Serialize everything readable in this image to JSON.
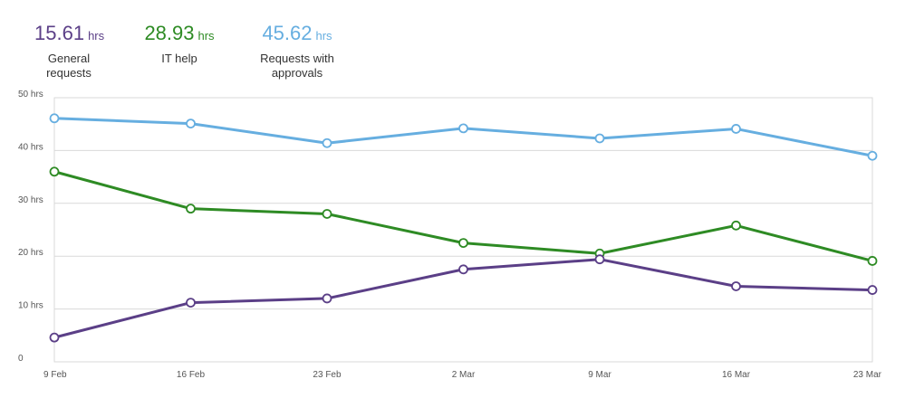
{
  "summary": [
    {
      "value": "15.61",
      "unit": "hrs",
      "label_lines": [
        "General",
        "requests"
      ],
      "color": "#5b3f87"
    },
    {
      "value": "28.93",
      "unit": "hrs",
      "label_lines": [
        "IT help"
      ],
      "color": "#2e8b24"
    },
    {
      "value": "45.62",
      "unit": "hrs",
      "label_lines": [
        "Requests with",
        "approvals"
      ],
      "color": "#66aee0"
    }
  ],
  "chart_data": {
    "type": "line",
    "x": [
      "9 Feb",
      "16 Feb",
      "23 Feb",
      "2 Mar",
      "9 Mar",
      "16 Mar",
      "23 Mar"
    ],
    "yticks": [
      "0",
      "10 hrs",
      "20 hrs",
      "30 hrs",
      "40 hrs",
      "50 hrs"
    ],
    "ylim": [
      0,
      50
    ],
    "grid": true,
    "series": [
      {
        "name": "Requests with approvals",
        "color": "#66aee0",
        "values": [
          46.1,
          45.1,
          41.4,
          44.2,
          42.3,
          44.1,
          39.0
        ]
      },
      {
        "name": "IT help",
        "color": "#2e8b24",
        "values": [
          36.0,
          29.0,
          28.0,
          22.5,
          20.5,
          25.8,
          19.1
        ]
      },
      {
        "name": "General requests",
        "color": "#5b3f87",
        "values": [
          4.6,
          11.2,
          12.0,
          17.5,
          19.4,
          14.3,
          13.6
        ]
      }
    ]
  }
}
